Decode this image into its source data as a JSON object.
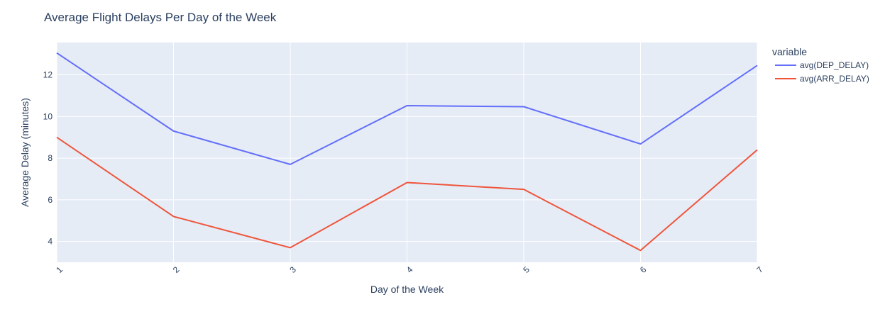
{
  "chart_data": {
    "type": "line",
    "title": "Average Flight Delays Per Day of the Week",
    "xlabel": "Day of the Week",
    "ylabel": "Average Delay (minutes)",
    "x": [
      1,
      2,
      3,
      4,
      5,
      6,
      7
    ],
    "x_tick_labels": [
      "1",
      "2",
      "3",
      "4",
      "5",
      "6",
      "7"
    ],
    "xlim": [
      1,
      7
    ],
    "y_ticks": [
      4,
      6,
      8,
      10,
      12
    ],
    "y_tick_labels": [
      "4",
      "6",
      "8",
      "10",
      "12"
    ],
    "ylim": [
      3,
      13.55
    ],
    "grid": true,
    "legend": {
      "title": "variable",
      "placement": "right"
    },
    "series": [
      {
        "name": "avg(DEP_DELAY)",
        "color": "#636efa",
        "values": [
          13.05,
          9.3,
          7.7,
          10.52,
          10.47,
          8.68,
          12.45
        ]
      },
      {
        "name": "avg(ARR_DELAY)",
        "color": "#ef553b",
        "values": [
          9.0,
          5.2,
          3.7,
          6.83,
          6.5,
          3.57,
          8.4
        ]
      }
    ],
    "colors": {
      "plot_background": "#e5ecf6",
      "grid": "#ffffff",
      "text": "#2a3f5f"
    }
  }
}
